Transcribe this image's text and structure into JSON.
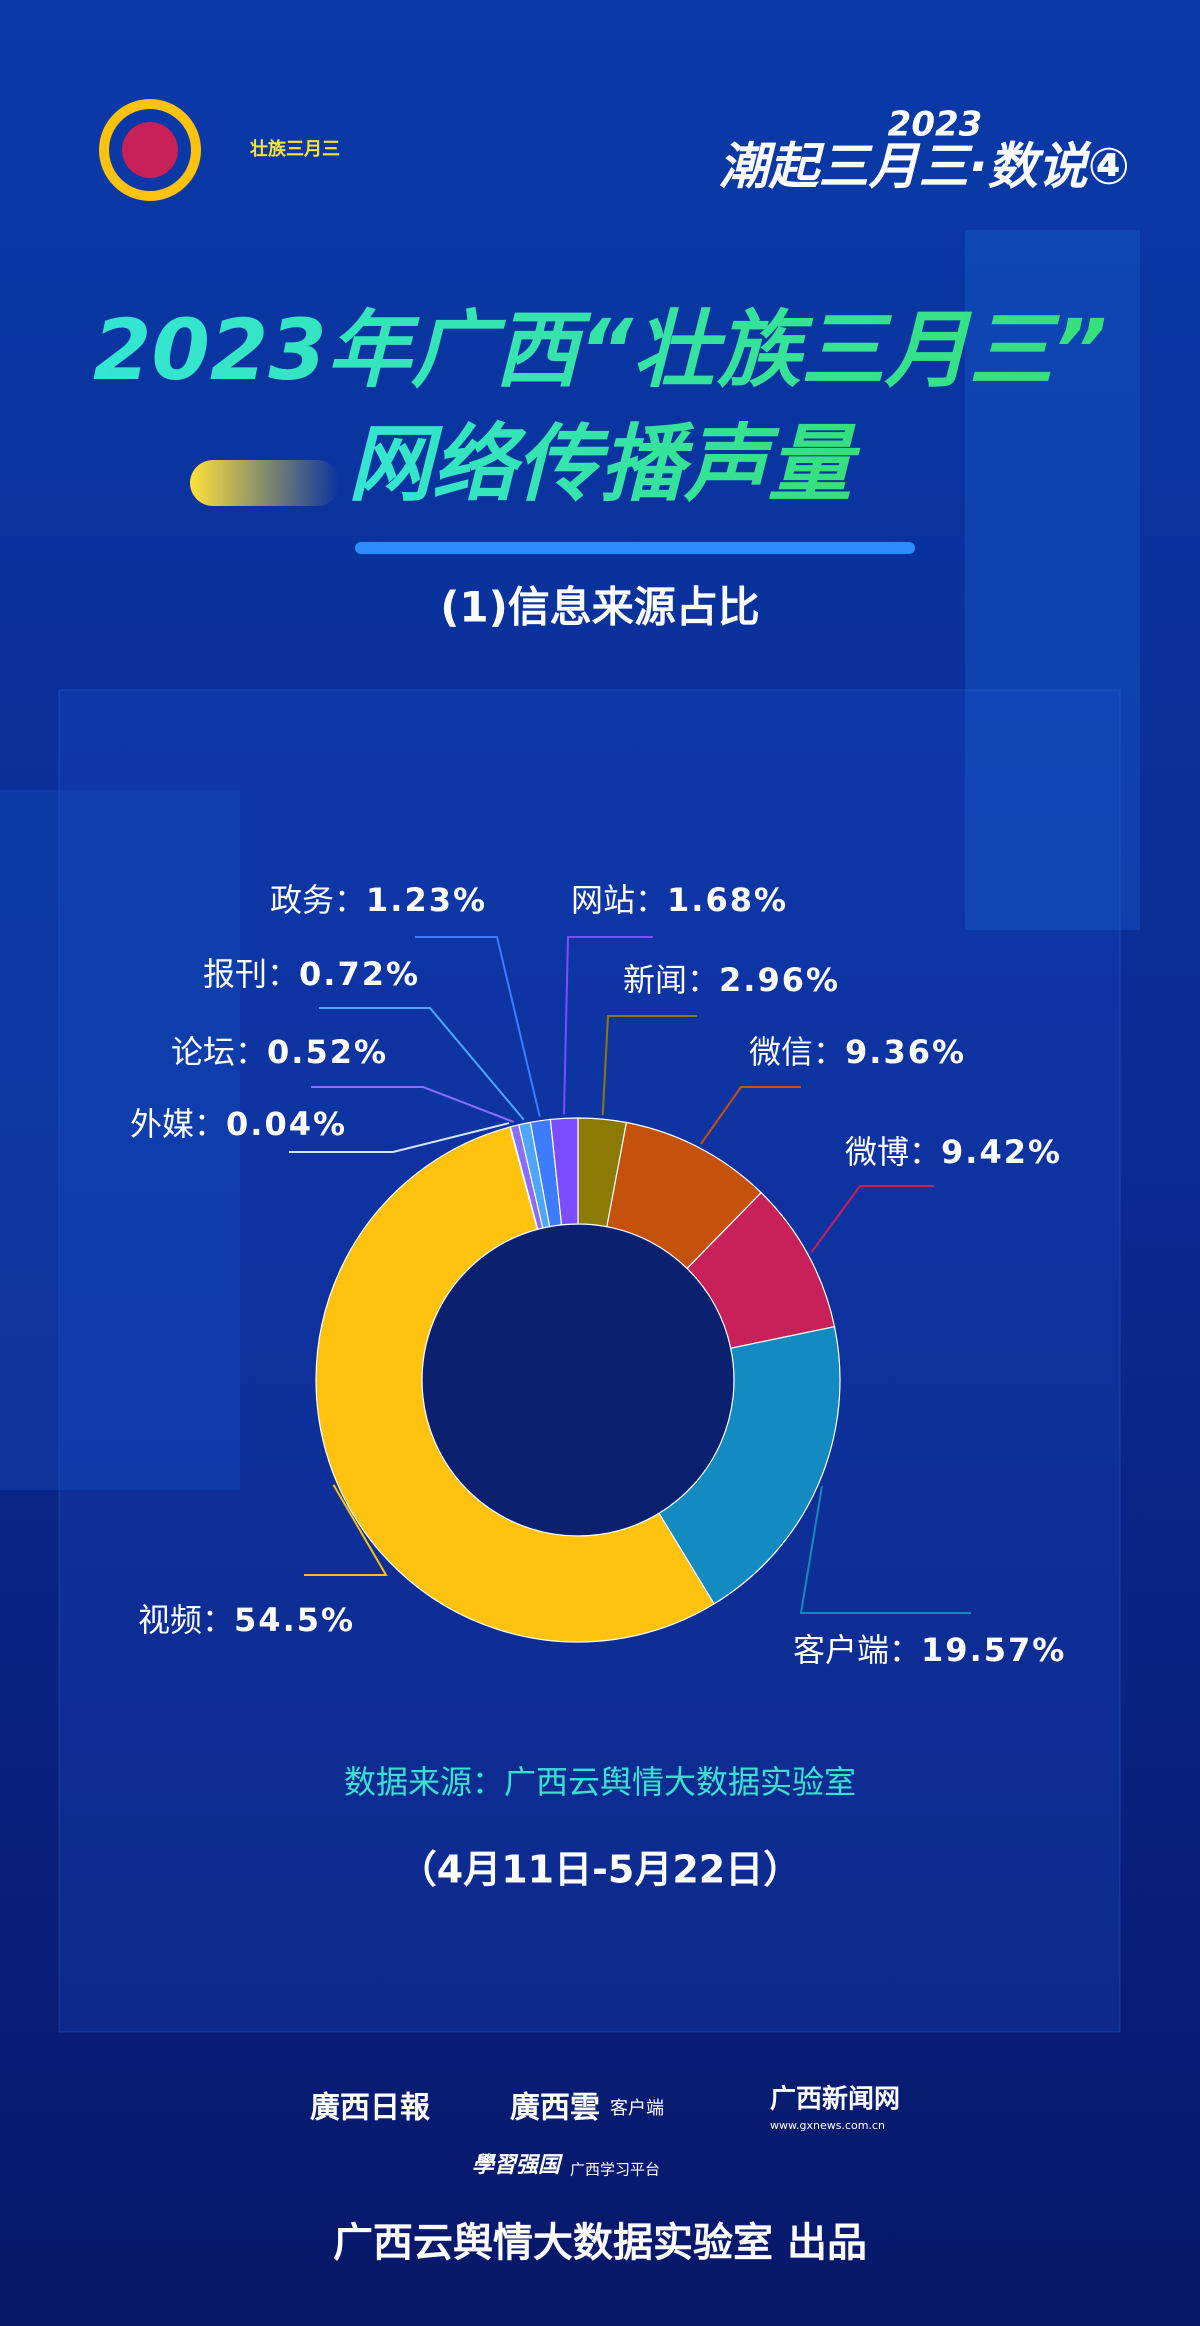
{
  "header": {
    "series_title": "潮起三月三·数说④",
    "year": "2023",
    "logo_text": "壮族三月三"
  },
  "chart_data": {
    "type": "donut",
    "title": [
      "2023年广西“壮族三月三”",
      "网络传播声量"
    ],
    "subtitle": "(1)信息来源占比",
    "categories": [
      "新闻",
      "微信",
      "微博",
      "客户端",
      "视频",
      "外媒",
      "论坛",
      "报刊",
      "政务",
      "网站"
    ],
    "values": [
      2.96,
      9.36,
      9.42,
      19.57,
      54.5,
      0.04,
      0.52,
      0.72,
      1.23,
      1.68
    ],
    "value_labels": [
      "2.96%",
      "9.36%",
      "9.42%",
      "19.57%",
      "54.5%",
      "0.04%",
      "0.52%",
      "0.72%",
      "1.23%",
      "1.68%"
    ],
    "colors": [
      "#8c7a06",
      "#c4520c",
      "#c8215a",
      "#138ac0",
      "#ffc20e",
      "#d8e4ff",
      "#8a6dff",
      "#4fa6ff",
      "#3d7bff",
      "#7c4dff"
    ],
    "label_separator": "：",
    "source": "数据来源：广西云舆情大数据实验室",
    "date_range": "（4月11日-5月22日）"
  },
  "footer": {
    "logos": [
      "廣西日報",
      "廣西雲",
      "客户端",
      "广西新闻网",
      "www.gxnews.com.cn",
      "學習强国",
      "广西学习平台"
    ],
    "credit": "广西云舆情大数据实验室 出品"
  }
}
